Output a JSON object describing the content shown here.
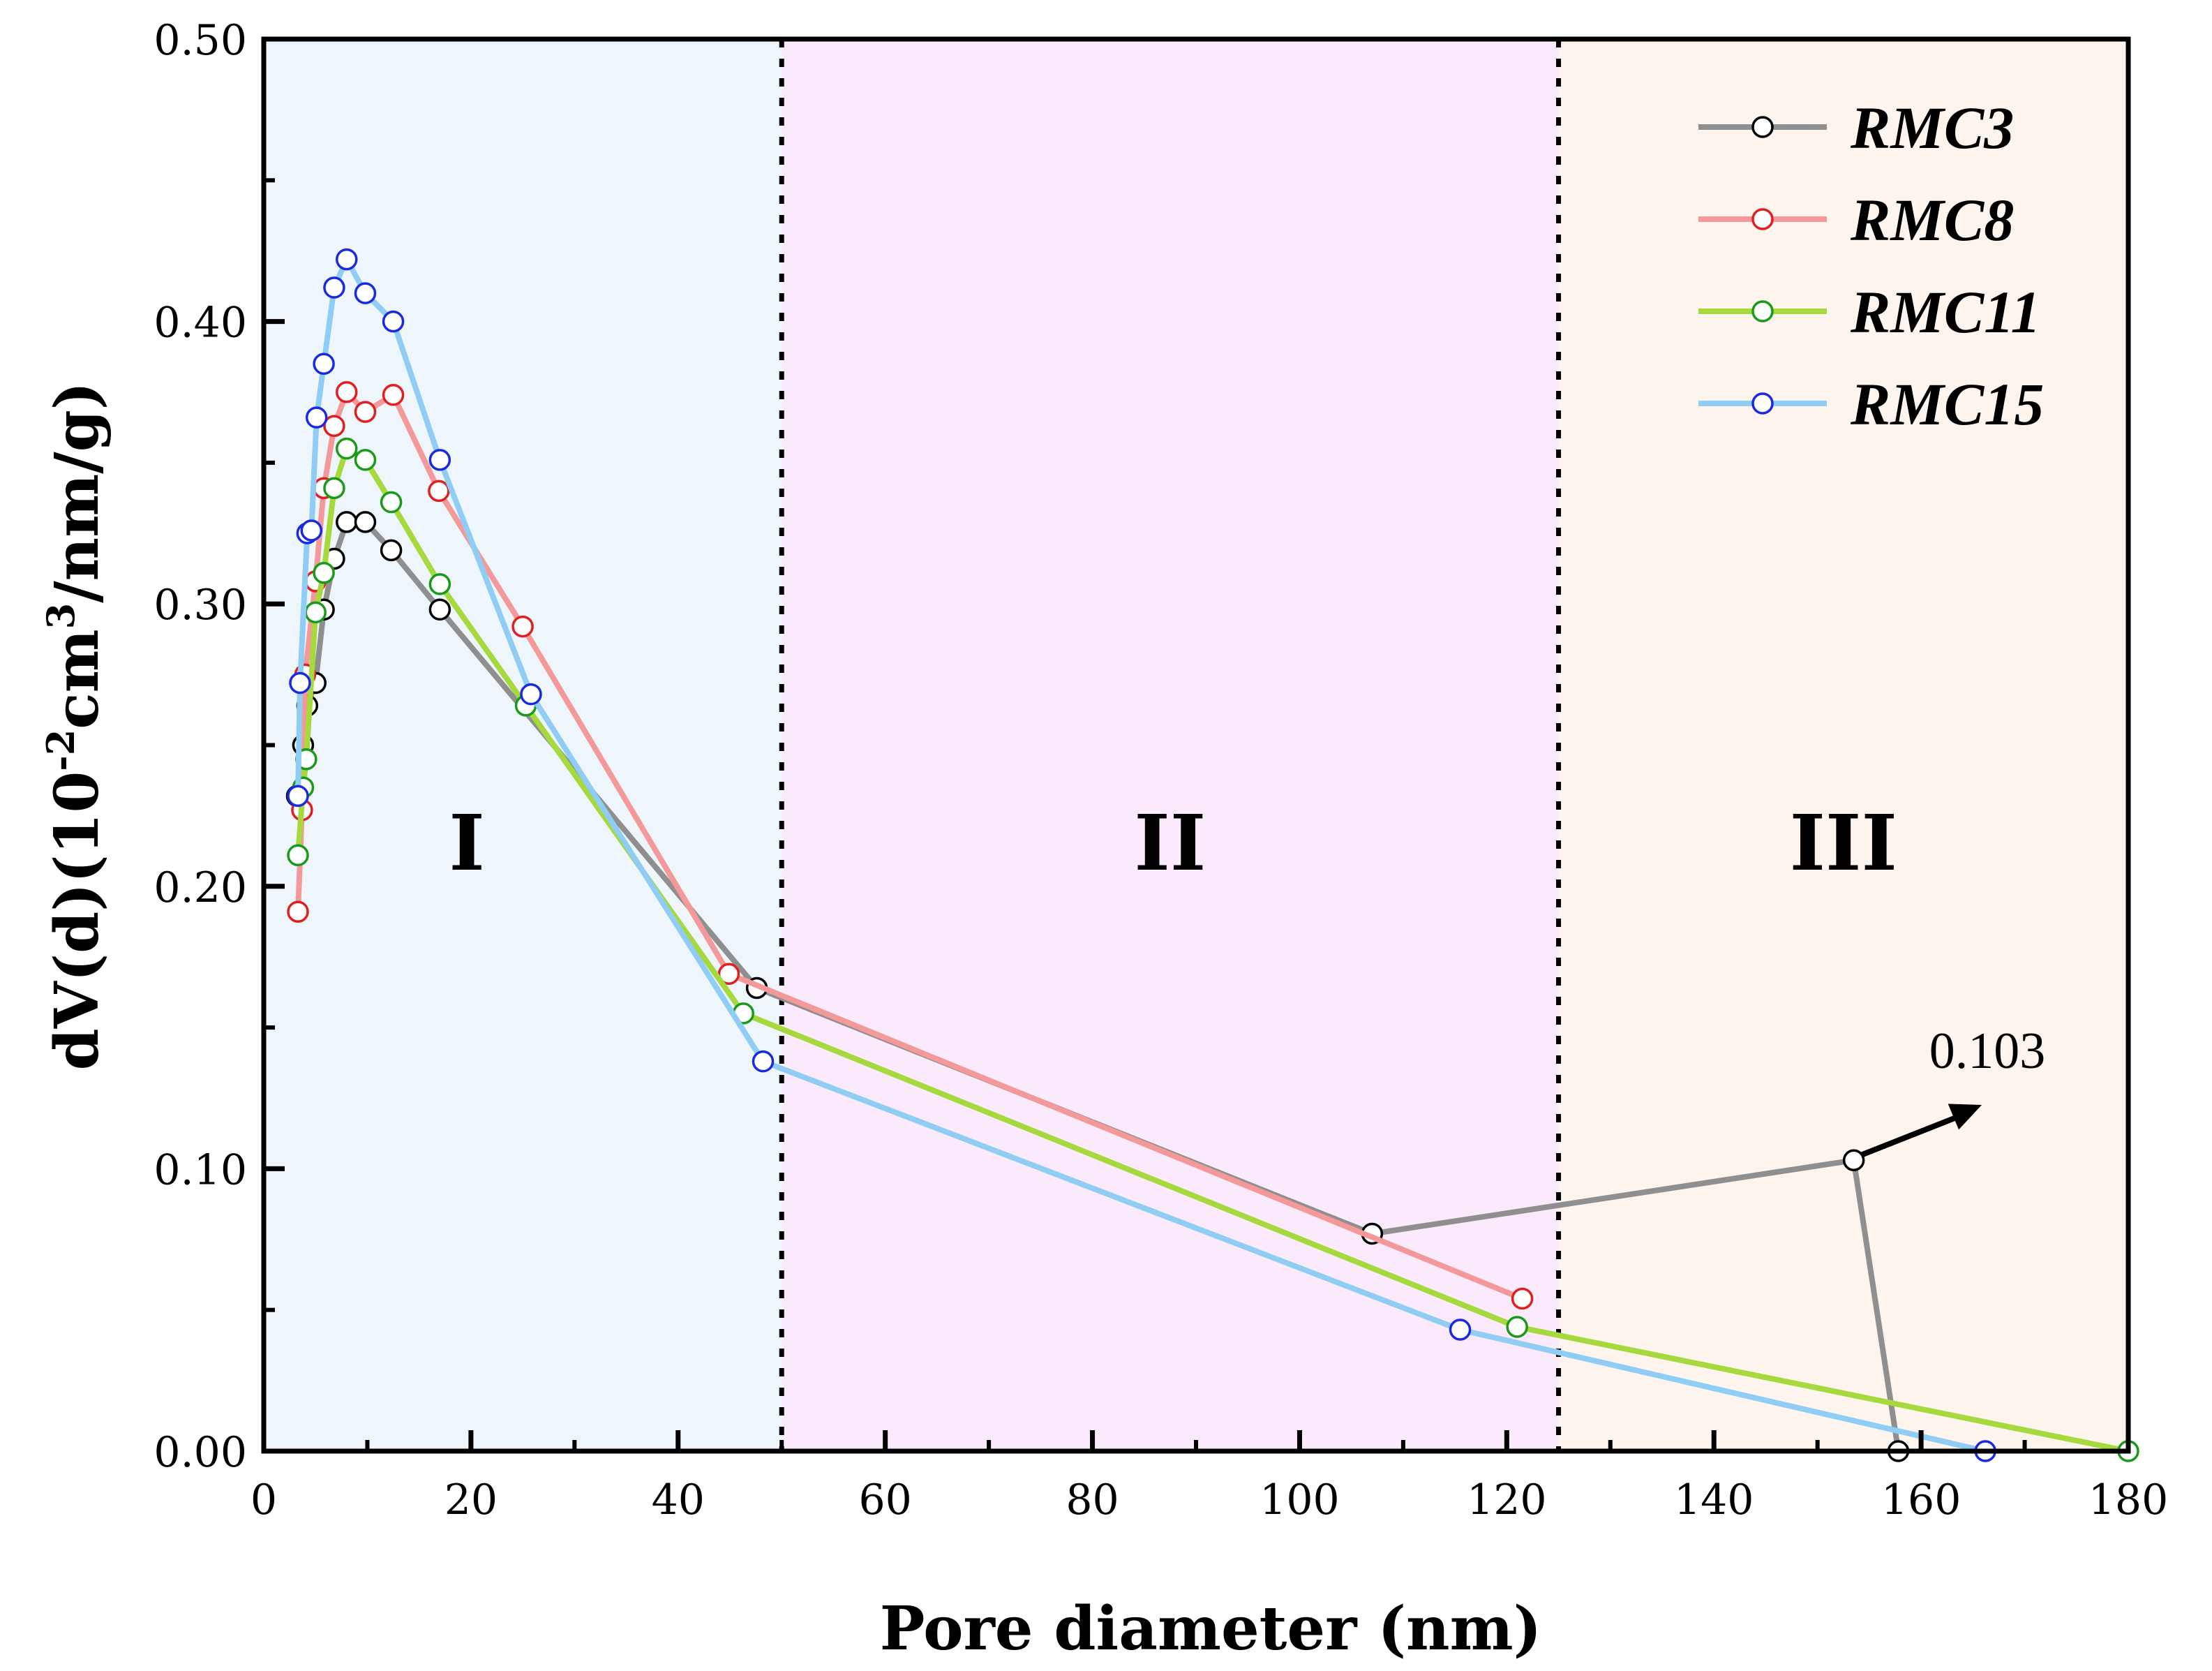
{
  "chart_data": {
    "type": "line",
    "title": "",
    "xlabel": "Pore diameter (nm)",
    "ylabel_parts": {
      "pre": "dV(d)(10",
      "sup1": "-2",
      "mid": "cm",
      "sup2": "3",
      "post": "/nm/g)"
    },
    "xlim": [
      0,
      180
    ],
    "ylim": [
      0,
      0.5
    ],
    "xticks": [
      0,
      20,
      40,
      60,
      80,
      100,
      120,
      140,
      160,
      180
    ],
    "yticks": [
      0.0,
      0.1,
      0.2,
      0.3,
      0.4,
      0.5
    ],
    "ytick_labels": [
      "0.00",
      "0.10",
      "0.20",
      "0.30",
      "0.40",
      "0.50"
    ],
    "legend_position": "top-right",
    "regions": [
      {
        "label": "I",
        "x0": 0,
        "x1": 50,
        "color": "#eef6fc"
      },
      {
        "label": "II",
        "x0": 50,
        "x1": 125,
        "color": "#fbeafb"
      },
      {
        "label": "III",
        "x0": 125,
        "x1": 180,
        "color": "#fdf4ee"
      }
    ],
    "region_dividers": [
      50,
      125
    ],
    "annotation": {
      "text": "0.103",
      "series": "RMC3",
      "x": 153.5,
      "y": 0.103
    },
    "series": [
      {
        "name": "RMC3",
        "line_color": "#8f8f8f",
        "marker_color": "#000000",
        "points": [
          [
            3.2,
            0.232
          ],
          [
            3.8,
            0.25
          ],
          [
            4.2,
            0.264
          ],
          [
            5.0,
            0.272
          ],
          [
            5.8,
            0.298
          ],
          [
            6.8,
            0.316
          ],
          [
            8.0,
            0.329
          ],
          [
            9.8,
            0.329
          ],
          [
            12.3,
            0.319
          ],
          [
            17.0,
            0.298
          ],
          [
            47.6,
            0.164
          ],
          [
            107.0,
            0.077
          ],
          [
            153.5,
            0.103
          ],
          [
            157.8,
            0.0
          ]
        ]
      },
      {
        "name": "RMC8",
        "line_color": "#f4999a",
        "marker_color": "#e02020",
        "points": [
          [
            3.3,
            0.191
          ],
          [
            3.7,
            0.227
          ],
          [
            4.0,
            0.275
          ],
          [
            5.0,
            0.308
          ],
          [
            5.8,
            0.341
          ],
          [
            6.8,
            0.363
          ],
          [
            8.0,
            0.375
          ],
          [
            9.8,
            0.368
          ],
          [
            12.5,
            0.374
          ],
          [
            16.9,
            0.34
          ],
          [
            25.0,
            0.292
          ],
          [
            44.9,
            0.169
          ],
          [
            121.5,
            0.054
          ]
        ]
      },
      {
        "name": "RMC11",
        "line_color": "#a6d93e",
        "marker_color": "#1a9a1a",
        "points": [
          [
            3.3,
            0.211
          ],
          [
            3.8,
            0.235
          ],
          [
            4.1,
            0.245
          ],
          [
            5.0,
            0.297
          ],
          [
            5.8,
            0.311
          ],
          [
            6.8,
            0.341
          ],
          [
            8.0,
            0.355
          ],
          [
            9.8,
            0.351
          ],
          [
            12.3,
            0.336
          ],
          [
            17.0,
            0.307
          ],
          [
            25.3,
            0.264
          ],
          [
            46.3,
            0.155
          ],
          [
            121.0,
            0.044
          ],
          [
            180.0,
            0.0
          ]
        ]
      },
      {
        "name": "RMC15",
        "line_color": "#8fcdf4",
        "marker_color": "#1a2ae0",
        "points": [
          [
            3.3,
            0.232
          ],
          [
            3.5,
            0.272
          ],
          [
            4.2,
            0.325
          ],
          [
            4.6,
            0.326
          ],
          [
            5.1,
            0.366
          ],
          [
            5.8,
            0.385
          ],
          [
            6.8,
            0.412
          ],
          [
            8.0,
            0.422
          ],
          [
            9.8,
            0.41
          ],
          [
            12.5,
            0.4
          ],
          [
            17.0,
            0.351
          ],
          [
            25.8,
            0.268
          ],
          [
            48.2,
            0.138
          ],
          [
            115.5,
            0.043
          ],
          [
            166.2,
            0.0
          ]
        ]
      }
    ]
  }
}
